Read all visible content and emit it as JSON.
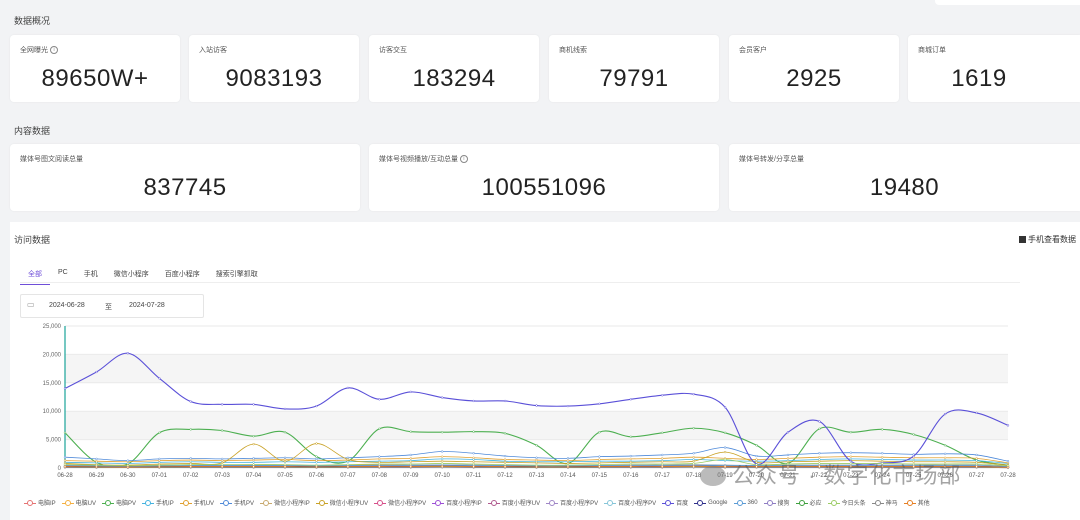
{
  "sections": {
    "overview": "数据概况",
    "content": "内容数据",
    "visit": "访问数据"
  },
  "overview_cards": [
    {
      "label": "全网曝光",
      "value": "89650W+",
      "info": "i"
    },
    {
      "label": "入站访客",
      "value": "9083193"
    },
    {
      "label": "访客交互",
      "value": "183294"
    },
    {
      "label": "商机线索",
      "value": "79791"
    },
    {
      "label": "会员客户",
      "value": "2925"
    },
    {
      "label": "商城订单",
      "value": "1619"
    }
  ],
  "content_cards": [
    {
      "label": "媒体号图文阅读总量",
      "value": "837745"
    },
    {
      "label": "媒体号视频播放/互动总量",
      "value": "100551096",
      "info": "i"
    },
    {
      "label": "媒体号转发/分享总量",
      "value": "19480"
    }
  ],
  "visit": {
    "mobile_link": "手机查看数据",
    "tabs": [
      "全部",
      "PC",
      "手机",
      "微信小程序",
      "百度小程序",
      "搜索引擎抓取"
    ],
    "active_tab": 0,
    "date_from": "2024-06-28",
    "date_sep": "至",
    "date_to": "2024-07-28"
  },
  "chart_data": {
    "type": "line",
    "categories": [
      "06-28",
      "06-29",
      "06-30",
      "07-01",
      "07-02",
      "07-03",
      "07-04",
      "07-05",
      "07-06",
      "07-07",
      "07-08",
      "07-09",
      "07-10",
      "07-11",
      "07-12",
      "07-13",
      "07-14",
      "07-15",
      "07-16",
      "07-17",
      "07-18",
      "07-19",
      "07-20",
      "07-21",
      "07-22",
      "07-23",
      "07-24",
      "07-25",
      "07-26",
      "07-27",
      "07-28"
    ],
    "y_ticks": [
      "0",
      "5,000",
      "10,000",
      "15,000",
      "20,000",
      "25,000"
    ],
    "ylim": [
      0,
      25000
    ],
    "grid": true,
    "legend_position": "bottom",
    "series": [
      {
        "name": "电脑IP",
        "color": "#e57373",
        "values": [
          400,
          300,
          200,
          250,
          300,
          300,
          350,
          300,
          250,
          300,
          350,
          300,
          300,
          300,
          250,
          250,
          200,
          250,
          300,
          300,
          350,
          300,
          250,
          300,
          300,
          300,
          300,
          300,
          300,
          300,
          200
        ]
      },
      {
        "name": "电脑UV",
        "color": "#f5b041",
        "values": [
          600,
          500,
          400,
          500,
          500,
          500,
          600,
          500,
          450,
          500,
          600,
          500,
          550,
          500,
          450,
          400,
          350,
          450,
          500,
          500,
          600,
          500,
          400,
          500,
          500,
          500,
          500,
          500,
          500,
          500,
          300
        ]
      },
      {
        "name": "电脑PV",
        "color": "#4caf50",
        "values": [
          6200,
          1000,
          700,
          6200,
          6800,
          6600,
          5600,
          6300,
          2000,
          1200,
          6900,
          6400,
          6300,
          6400,
          6100,
          4000,
          800,
          6300,
          5500,
          6200,
          7000,
          6200,
          4000,
          800,
          6900,
          6300,
          6800,
          5900,
          4000,
          1400,
          500
        ]
      },
      {
        "name": "手机IP",
        "color": "#45b3e0",
        "values": [
          1000,
          900,
          800,
          1000,
          1100,
          1000,
          1000,
          1100,
          1000,
          1100,
          1200,
          1300,
          1600,
          1500,
          1200,
          1100,
          1100,
          1200,
          1200,
          1300,
          1500,
          1300,
          1200,
          1300,
          1500,
          1600,
          1500,
          1400,
          1400,
          1300,
          800
        ]
      },
      {
        "name": "手机UV",
        "color": "#e0a030",
        "values": [
          1300,
          1200,
          1100,
          1300,
          1400,
          1300,
          1400,
          1500,
          1300,
          1400,
          1600,
          1700,
          2000,
          1800,
          1500,
          1400,
          1300,
          1500,
          1600,
          1700,
          1900,
          1700,
          1500,
          1700,
          1900,
          2000,
          1900,
          1800,
          1800,
          1700,
          900
        ]
      },
      {
        "name": "手机PV",
        "color": "#4f8ad9",
        "values": [
          1900,
          1600,
          1300,
          1600,
          1700,
          1600,
          1700,
          1800,
          1600,
          1800,
          2000,
          2300,
          2900,
          2600,
          2100,
          1800,
          1700,
          2000,
          2100,
          2300,
          2600,
          3600,
          2100,
          2300,
          2600,
          2700,
          2600,
          2400,
          2500,
          2300,
          1200
        ]
      },
      {
        "name": "微信小程序IP",
        "color": "#c8a96e",
        "values": [
          300,
          250,
          200,
          250,
          300,
          300,
          300,
          300,
          250,
          300,
          300,
          300,
          350,
          300,
          300,
          250,
          250,
          300,
          300,
          300,
          350,
          300,
          300,
          300,
          300,
          300,
          300,
          300,
          300,
          300,
          200
        ]
      },
      {
        "name": "微信小程序UV",
        "color": "#c9a227",
        "values": [
          800,
          600,
          500,
          700,
          800,
          900,
          4200,
          1200,
          4300,
          1500,
          1000,
          1100,
          1200,
          1100,
          1000,
          900,
          800,
          900,
          1000,
          1100,
          1200,
          2800,
          1000,
          1100,
          1200,
          1300,
          1200,
          1100,
          1100,
          1000,
          500
        ]
      },
      {
        "name": "微信小程序PV",
        "color": "#d64f8a",
        "values": [
          200,
          150,
          100,
          150,
          200,
          200,
          200,
          200,
          150,
          200,
          200,
          200,
          250,
          200,
          200,
          150,
          150,
          200,
          200,
          200,
          250,
          200,
          200,
          200,
          200,
          200,
          200,
          200,
          200,
          200,
          100
        ]
      },
      {
        "name": "百度小程序IP",
        "color": "#9c4fd6",
        "values": [
          150,
          120,
          100,
          120,
          150,
          150,
          150,
          150,
          120,
          150,
          150,
          150,
          200,
          150,
          150,
          120,
          120,
          150,
          150,
          150,
          200,
          150,
          150,
          150,
          150,
          150,
          150,
          150,
          150,
          150,
          80
        ]
      },
      {
        "name": "百度小程序UV",
        "color": "#b05a8e",
        "values": [
          100,
          80,
          60,
          80,
          100,
          100,
          100,
          100,
          80,
          100,
          100,
          100,
          150,
          100,
          100,
          80,
          80,
          100,
          100,
          100,
          150,
          100,
          100,
          100,
          100,
          100,
          100,
          100,
          100,
          100,
          50
        ]
      },
      {
        "name": "百度小程序PV",
        "color": "#a087c7",
        "values": [
          250,
          200,
          150,
          200,
          250,
          250,
          250,
          250,
          200,
          250,
          250,
          250,
          300,
          250,
          250,
          200,
          200,
          250,
          250,
          250,
          300,
          250,
          250,
          250,
          250,
          250,
          250,
          250,
          250,
          250,
          120
        ]
      },
      {
        "name": "百度小程序PV",
        "color": "#86c5d8",
        "values": [
          350,
          300,
          250,
          300,
          350,
          350,
          350,
          350,
          300,
          350,
          350,
          350,
          400,
          350,
          350,
          300,
          300,
          350,
          350,
          350,
          400,
          350,
          350,
          350,
          350,
          350,
          350,
          350,
          350,
          350,
          180
        ]
      },
      {
        "name": "百度",
        "color": "#5a50d8",
        "values": [
          14000,
          16900,
          20200,
          15800,
          11700,
          11200,
          11200,
          10400,
          10900,
          14100,
          12100,
          13400,
          12400,
          11800,
          11800,
          11000,
          10900,
          11300,
          12100,
          12800,
          13000,
          10700,
          700,
          6300,
          8200,
          1200,
          900,
          2100,
          9500,
          9700,
          7500
        ]
      },
      {
        "name": "Google",
        "color": "#2d2d8a",
        "values": [
          300,
          250,
          200,
          250,
          300,
          300,
          300,
          300,
          250,
          300,
          300,
          300,
          350,
          300,
          300,
          250,
          250,
          300,
          300,
          300,
          350,
          300,
          300,
          300,
          300,
          300,
          300,
          300,
          300,
          300,
          150
        ]
      },
      {
        "name": "360",
        "color": "#5b9bd5",
        "values": [
          500,
          400,
          350,
          400,
          450,
          450,
          450,
          450,
          400,
          450,
          500,
          500,
          550,
          500,
          450,
          400,
          400,
          450,
          500,
          500,
          550,
          500,
          450,
          500,
          500,
          500,
          500,
          500,
          500,
          500,
          250
        ]
      },
      {
        "name": "搜狗",
        "color": "#8e7cc3",
        "values": [
          200,
          150,
          120,
          150,
          180,
          180,
          180,
          180,
          150,
          180,
          200,
          200,
          220,
          200,
          180,
          150,
          150,
          180,
          200,
          200,
          220,
          200,
          180,
          200,
          200,
          200,
          200,
          200,
          200,
          200,
          100
        ]
      },
      {
        "name": "必应",
        "color": "#3ea03e",
        "values": [
          150,
          120,
          100,
          120,
          140,
          140,
          140,
          140,
          120,
          140,
          150,
          150,
          170,
          150,
          140,
          120,
          120,
          140,
          150,
          150,
          170,
          150,
          140,
          150,
          150,
          150,
          150,
          150,
          150,
          150,
          80
        ]
      },
      {
        "name": "今日头条",
        "color": "#9ccc65",
        "values": [
          600,
          500,
          400,
          500,
          600,
          600,
          600,
          600,
          500,
          600,
          700,
          700,
          800,
          700,
          600,
          500,
          500,
          600,
          700,
          700,
          800,
          1500,
          600,
          700,
          800,
          800,
          800,
          700,
          700,
          700,
          400
        ]
      },
      {
        "name": "神马",
        "color": "#888888",
        "values": [
          100,
          80,
          60,
          80,
          100,
          100,
          100,
          100,
          80,
          100,
          100,
          100,
          120,
          100,
          100,
          80,
          80,
          100,
          100,
          100,
          120,
          100,
          100,
          100,
          100,
          100,
          100,
          100,
          100,
          100,
          50
        ]
      },
      {
        "name": "其他",
        "color": "#e67e22",
        "values": [
          250,
          200,
          150,
          200,
          250,
          250,
          250,
          250,
          200,
          250,
          250,
          250,
          300,
          250,
          250,
          200,
          200,
          250,
          250,
          250,
          300,
          250,
          250,
          250,
          250,
          250,
          250,
          250,
          250,
          250,
          120
        ]
      }
    ]
  },
  "watermark": "公众号 · 数字化市场部"
}
